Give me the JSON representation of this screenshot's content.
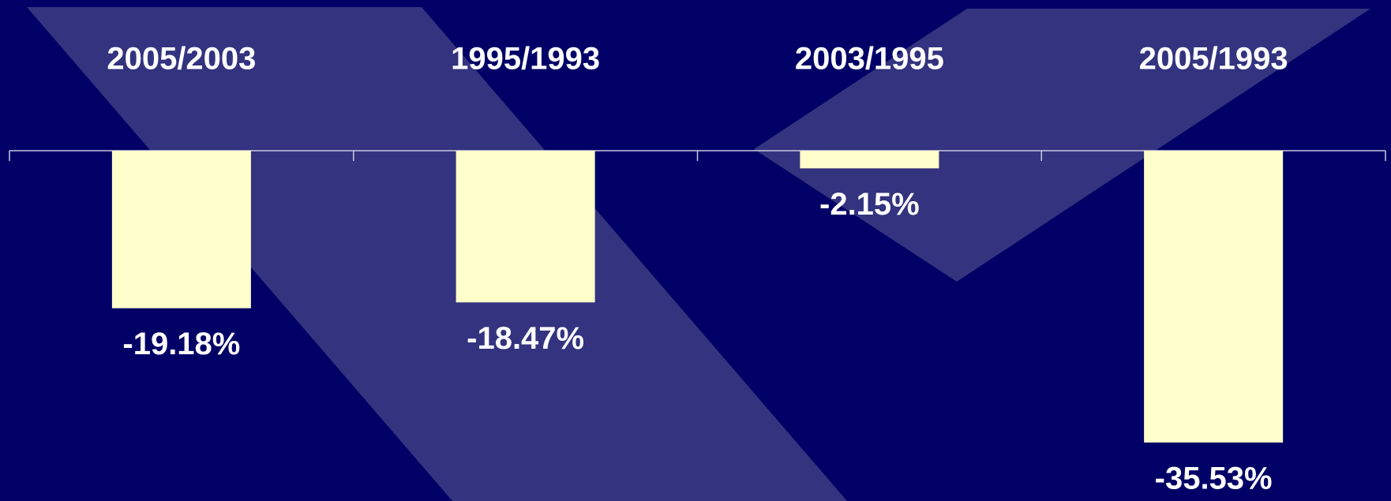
{
  "chart_data": {
    "type": "bar",
    "categories": [
      "2005/2003",
      "1995/1993",
      "2003/1995",
      "2005/1993"
    ],
    "values": [
      -19.18,
      -18.47,
      -2.15,
      -35.53
    ],
    "value_labels": [
      "-19.18%",
      "-18.47%",
      "-2.15%",
      "-35.53%"
    ],
    "color": "#ffffcc"
  }
}
